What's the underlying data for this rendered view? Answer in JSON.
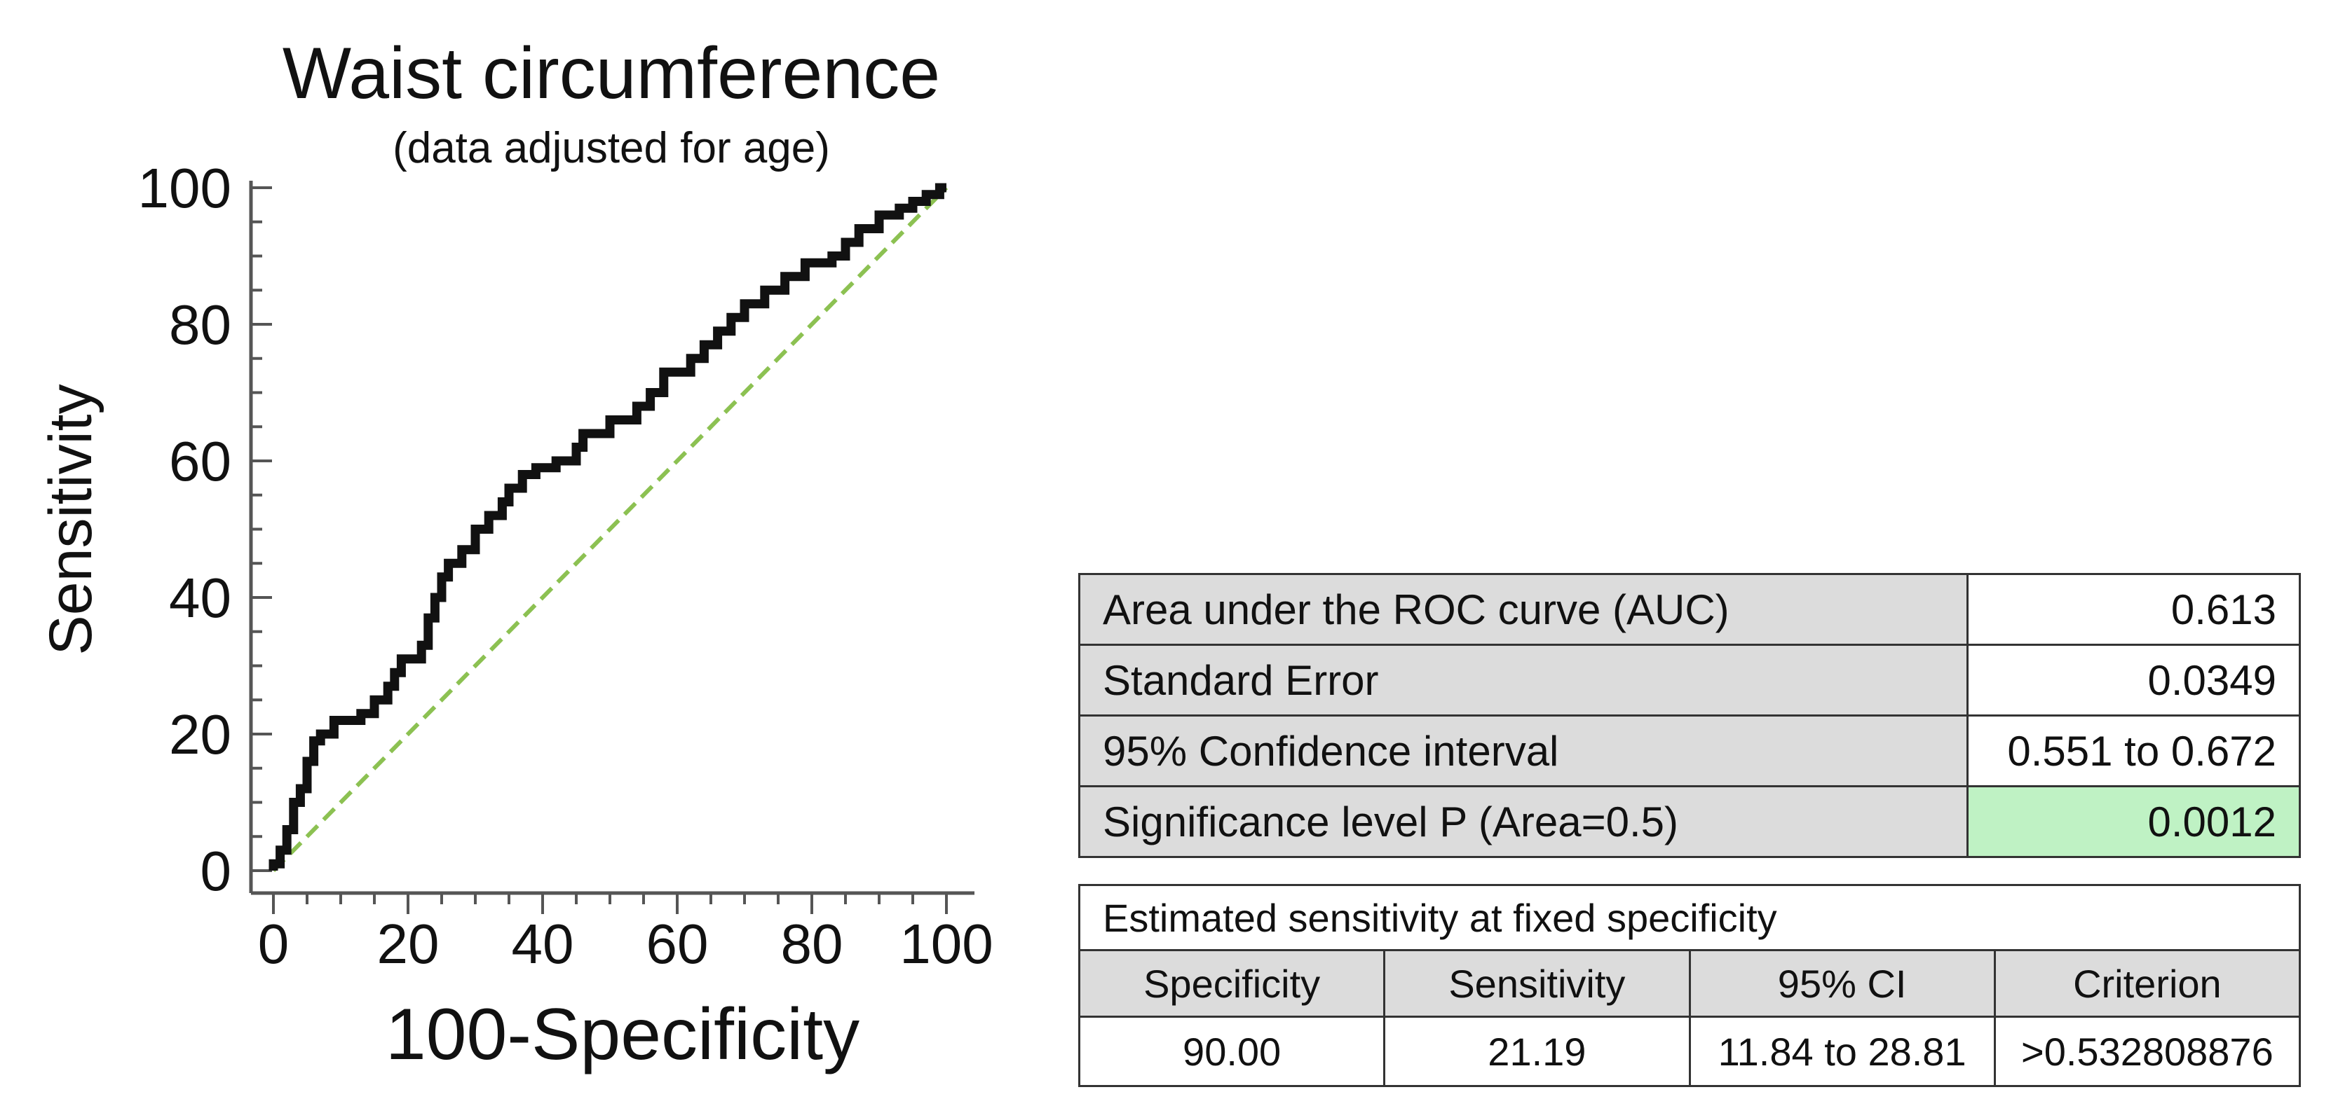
{
  "chart_data": {
    "type": "line",
    "title": "Waist circumference",
    "subtitle": "(data adjusted for age)",
    "xlabel": "100-Specificity",
    "ylabel": "Sensitivity",
    "xlim": [
      0,
      100
    ],
    "ylim": [
      0,
      100
    ],
    "x_ticks": [
      "0",
      "20",
      "40",
      "60",
      "80",
      "100"
    ],
    "y_ticks": [
      "0",
      "20",
      "40",
      "60",
      "80",
      "100"
    ],
    "grid": false,
    "series": [
      {
        "values": [
          [
            0,
            0
          ],
          [
            0,
            1
          ],
          [
            1,
            1
          ],
          [
            1,
            3
          ],
          [
            2,
            3
          ],
          [
            2,
            6
          ],
          [
            3,
            6
          ],
          [
            3,
            10
          ],
          [
            4,
            10
          ],
          [
            4,
            12
          ],
          [
            5,
            12
          ],
          [
            5,
            16
          ],
          [
            6,
            16
          ],
          [
            6,
            19
          ],
          [
            7,
            19
          ],
          [
            7,
            20
          ],
          [
            9,
            20
          ],
          [
            9,
            22
          ],
          [
            13,
            22
          ],
          [
            13,
            23
          ],
          [
            15,
            23
          ],
          [
            15,
            25
          ],
          [
            17,
            25
          ],
          [
            17,
            27
          ],
          [
            18,
            27
          ],
          [
            18,
            29
          ],
          [
            19,
            29
          ],
          [
            19,
            31
          ],
          [
            22,
            31
          ],
          [
            22,
            33
          ],
          [
            23,
            33
          ],
          [
            23,
            37
          ],
          [
            24,
            37
          ],
          [
            24,
            40
          ],
          [
            25,
            40
          ],
          [
            25,
            43
          ],
          [
            26,
            43
          ],
          [
            26,
            45
          ],
          [
            28,
            45
          ],
          [
            28,
            47
          ],
          [
            30,
            47
          ],
          [
            30,
            50
          ],
          [
            32,
            50
          ],
          [
            32,
            52
          ],
          [
            34,
            52
          ],
          [
            34,
            54
          ],
          [
            35,
            54
          ],
          [
            35,
            56
          ],
          [
            37,
            56
          ],
          [
            37,
            58
          ],
          [
            39,
            58
          ],
          [
            39,
            59
          ],
          [
            42,
            59
          ],
          [
            42,
            60
          ],
          [
            45,
            60
          ],
          [
            45,
            62
          ],
          [
            46,
            62
          ],
          [
            46,
            64
          ],
          [
            50,
            64
          ],
          [
            50,
            66
          ],
          [
            54,
            66
          ],
          [
            54,
            68
          ],
          [
            56,
            68
          ],
          [
            56,
            70
          ],
          [
            58,
            70
          ],
          [
            58,
            73
          ],
          [
            62,
            73
          ],
          [
            62,
            75
          ],
          [
            64,
            75
          ],
          [
            64,
            77
          ],
          [
            66,
            77
          ],
          [
            66,
            79
          ],
          [
            68,
            79
          ],
          [
            68,
            81
          ],
          [
            70,
            81
          ],
          [
            70,
            83
          ],
          [
            73,
            83
          ],
          [
            73,
            85
          ],
          [
            76,
            85
          ],
          [
            76,
            87
          ],
          [
            79,
            87
          ],
          [
            79,
            89
          ],
          [
            83,
            89
          ],
          [
            83,
            90
          ],
          [
            85,
            90
          ],
          [
            85,
            92
          ],
          [
            87,
            92
          ],
          [
            87,
            94
          ],
          [
            90,
            94
          ],
          [
            90,
            96
          ],
          [
            93,
            96
          ],
          [
            93,
            97
          ],
          [
            95,
            97
          ],
          [
            95,
            98
          ],
          [
            97,
            98
          ],
          [
            97,
            99
          ],
          [
            99,
            99
          ],
          [
            99,
            100
          ],
          [
            100,
            100
          ]
        ],
        "color": "#111111"
      },
      {
        "values": [
          [
            0,
            0
          ],
          [
            100,
            100
          ]
        ],
        "color": "#8cc152",
        "style": "dashed"
      }
    ]
  },
  "stats_table": {
    "rows": [
      {
        "label": "Area under the ROC curve (AUC)",
        "value": "0.613"
      },
      {
        "label": "Standard Error",
        "value": "0.0349"
      },
      {
        "label": "95% Confidence interval",
        "value": "0.551 to 0.672"
      },
      {
        "label": "Significance level P (Area=0.5)",
        "value": "0.0012"
      }
    ],
    "highlight_color": "#bff2c4"
  },
  "sensitivity_table": {
    "caption": "Estimated sensitivity at fixed specificity",
    "headers": [
      "Specificity",
      "Sensitivity",
      "95% CI",
      "Criterion"
    ],
    "rows": [
      [
        "90.00",
        "21.19",
        "11.84 to 28.81",
        ">0.532808876"
      ]
    ]
  }
}
